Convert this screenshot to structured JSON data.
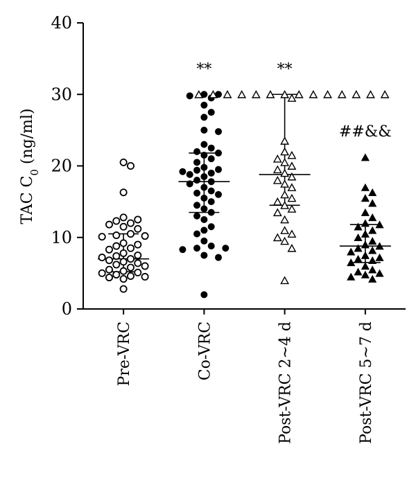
{
  "chart_data": {
    "type": "scatter",
    "ylabel": "TAC C",
    "ylabel_sub": "0",
    "ylabel_unit": " (ng/ml)",
    "ylim": [
      0,
      40
    ],
    "yticks": [
      "0",
      "10",
      "20",
      "30",
      "40"
    ],
    "categories": [
      "Pre-VRC",
      "Co-VRC",
      "Post-VRC 2~4 d",
      "Post-VRC 5~7 d"
    ],
    "annotations": [
      "",
      "**",
      "**",
      "##&&"
    ],
    "series": [
      {
        "category": "Pre-VRC",
        "marker": "open-circle",
        "median": 7.0,
        "q1": 5.2,
        "q3": 10.5,
        "values": [
          20.5,
          20.0,
          16.3,
          12.8,
          12.5,
          12.3,
          12.0,
          11.8,
          11.5,
          11.2,
          10.5,
          10.3,
          10.2,
          10.1,
          9.2,
          9.0,
          8.8,
          8.5,
          8.3,
          7.8,
          7.5,
          7.4,
          7.2,
          7.0,
          6.8,
          6.6,
          6.4,
          6.2,
          6.0,
          5.8,
          5.5,
          5.3,
          5.1,
          5.0,
          4.8,
          4.6,
          4.5,
          4.4,
          4.2,
          2.8
        ]
      },
      {
        "category": "Co-VRC",
        "marker": "filled-circle",
        "median": 17.8,
        "q1": 13.5,
        "q3": 21.8,
        "values": [
          30.0,
          30.0,
          29.8,
          29.5,
          28.5,
          27.5,
          26.8,
          25.0,
          24.8,
          23.0,
          22.5,
          22.0,
          21.8,
          21.5,
          21.0,
          20.5,
          19.8,
          19.5,
          19.4,
          19.2,
          19.0,
          18.8,
          18.5,
          18.0,
          17.8,
          17.5,
          17.0,
          16.5,
          16.2,
          16.0,
          15.5,
          15.0,
          14.5,
          14.0,
          13.5,
          13.0,
          12.5,
          11.5,
          11.0,
          10.5,
          9.5,
          8.8,
          8.5,
          8.5,
          8.3,
          7.5,
          7.2,
          2.0
        ]
      },
      {
        "category": "Post-VRC 2~4 d",
        "marker": "open-triangle",
        "median": 18.8,
        "q1": 14.5,
        "q3": 30.0,
        "values": [
          30.0,
          30.0,
          30.0,
          30.0,
          30.0,
          30.0,
          30.0,
          30.0,
          30.0,
          30.0,
          30.0,
          30.0,
          30.0,
          30.0,
          29.5,
          23.5,
          22.0,
          21.5,
          21.0,
          20.5,
          20.0,
          19.5,
          19.0,
          18.5,
          18.0,
          17.5,
          17.0,
          16.0,
          15.5,
          15.0,
          14.5,
          14.0,
          13.5,
          12.5,
          11.0,
          10.5,
          10.0,
          9.5,
          8.5,
          4.0
        ]
      },
      {
        "category": "Post-VRC 5~7 d",
        "marker": "filled-triangle",
        "median": 8.8,
        "q1": 6.5,
        "q3": 11.8,
        "values": [
          21.2,
          17.0,
          16.3,
          15.5,
          14.8,
          13.5,
          12.8,
          12.0,
          11.8,
          11.5,
          11.0,
          10.5,
          10.0,
          9.5,
          9.0,
          8.8,
          8.5,
          8.2,
          8.0,
          7.5,
          7.2,
          7.0,
          6.8,
          6.5,
          6.0,
          5.5,
          5.2,
          5.0,
          4.8,
          4.5,
          4.2
        ]
      }
    ]
  }
}
